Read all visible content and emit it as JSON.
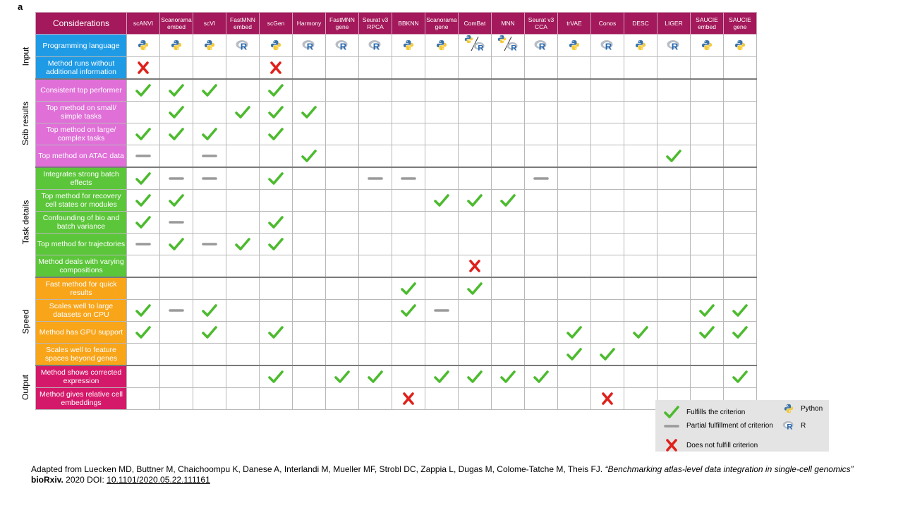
{
  "panel_label": "a",
  "corner_label": "Considerations",
  "methods": [
    [
      "scANVI"
    ],
    [
      "Scanorama",
      "embed"
    ],
    [
      "scVI"
    ],
    [
      "FastMNN",
      "embed"
    ],
    [
      "scGen"
    ],
    [
      "Harmony"
    ],
    [
      "FastMNN",
      "gene"
    ],
    [
      "Seurat v3",
      "RPCA"
    ],
    [
      "BBKNN"
    ],
    [
      "Scanorama",
      "gene"
    ],
    [
      "ComBat"
    ],
    [
      "MNN"
    ],
    [
      "Seurat v3",
      "CCA"
    ],
    [
      "trVAE"
    ],
    [
      "Conos"
    ],
    [
      "DESC"
    ],
    [
      "LIGER"
    ],
    [
      "SAUCIE",
      "embed"
    ],
    [
      "SAUCIE",
      "gene"
    ]
  ],
  "groups": [
    {
      "name": "Input",
      "color": "#1f9be6",
      "rows": [
        {
          "label": "Programming language",
          "cells": [
            "py",
            "py",
            "py",
            "R",
            "py",
            "R",
            "R",
            "R",
            "py",
            "py",
            "pyR",
            "pyR",
            "R",
            "py",
            "R",
            "py",
            "R",
            "py",
            "py"
          ]
        },
        {
          "label": "Method runs without additional information",
          "cells": [
            "x",
            "",
            "",
            "",
            "x",
            "",
            "",
            "",
            "",
            "",
            "",
            "",
            "",
            "",
            "",
            "",
            "",
            "",
            ""
          ]
        }
      ]
    },
    {
      "name": "Scib results",
      "color": "#e070d8",
      "rows": [
        {
          "label": "Consistent top performer",
          "cells": [
            "c",
            "c",
            "c",
            "",
            "c",
            "",
            "",
            "",
            "",
            "",
            "",
            "",
            "",
            "",
            "",
            "",
            "",
            "",
            ""
          ]
        },
        {
          "label": "Top method on small/ simple tasks",
          "cells": [
            "",
            "c",
            "",
            "c",
            "c",
            "c",
            "",
            "",
            "",
            "",
            "",
            "",
            "",
            "",
            "",
            "",
            "",
            "",
            ""
          ]
        },
        {
          "label": "Top method on large/ complex tasks",
          "cells": [
            "c",
            "c",
            "c",
            "",
            "c",
            "",
            "",
            "",
            "",
            "",
            "",
            "",
            "",
            "",
            "",
            "",
            "",
            "",
            ""
          ]
        },
        {
          "label": "Top method on ATAC data",
          "cells": [
            "p",
            "",
            "p",
            "",
            "",
            "c",
            "",
            "",
            "",
            "",
            "",
            "",
            "",
            "",
            "",
            "",
            "c",
            "",
            ""
          ]
        }
      ]
    },
    {
      "name": "Task details",
      "color": "#5cc63a",
      "rows": [
        {
          "label": "Integrates strong batch effects",
          "cells": [
            "c",
            "p",
            "p",
            "",
            "c",
            "",
            "",
            "p",
            "p",
            "",
            "",
            "",
            "p",
            "",
            "",
            "",
            "",
            "",
            ""
          ]
        },
        {
          "label": "Top method for recovery cell states or modules",
          "cells": [
            "c",
            "c",
            "",
            "",
            "",
            "",
            "",
            "",
            "",
            "c",
            "c",
            "c",
            "",
            "",
            "",
            "",
            "",
            "",
            ""
          ]
        },
        {
          "label": "Confounding of bio and batch variance",
          "cells": [
            "c",
            "p",
            "",
            "",
            "c",
            "",
            "",
            "",
            "",
            "",
            "",
            "",
            "",
            "",
            "",
            "",
            "",
            "",
            ""
          ]
        },
        {
          "label": "Top method for trajectories",
          "cells": [
            "p",
            "c",
            "p",
            "c",
            "c",
            "",
            "",
            "",
            "",
            "",
            "",
            "",
            "",
            "",
            "",
            "",
            "",
            "",
            ""
          ]
        },
        {
          "label": "Method deals with varying compositions",
          "cells": [
            "",
            "",
            "",
            "",
            "",
            "",
            "",
            "",
            "",
            "",
            "x",
            "",
            "",
            "",
            "",
            "",
            "",
            "",
            ""
          ]
        }
      ]
    },
    {
      "name": "Speed",
      "color": "#f8a51a",
      "rows": [
        {
          "label": "Fast method for quick results",
          "cells": [
            "",
            "",
            "",
            "",
            "",
            "",
            "",
            "",
            "c",
            "",
            "c",
            "",
            "",
            "",
            "",
            "",
            "",
            "",
            ""
          ]
        },
        {
          "label": "Scales well to large datasets on CPU",
          "cells": [
            "c",
            "p",
            "c",
            "",
            "",
            "",
            "",
            "",
            "c",
            "p",
            "",
            "",
            "",
            "",
            "",
            "",
            "",
            "c",
            "c"
          ]
        },
        {
          "label": "Method has GPU support",
          "cells": [
            "c",
            "",
            "c",
            "",
            "c",
            "",
            "",
            "",
            "",
            "",
            "",
            "",
            "",
            "c",
            "",
            "c",
            "",
            "c",
            "c"
          ]
        },
        {
          "label": "Scales well to feature spaces beyond genes",
          "cells": [
            "",
            "",
            "",
            "",
            "",
            "",
            "",
            "",
            "",
            "",
            "",
            "",
            "",
            "c",
            "c",
            "",
            "",
            "",
            ""
          ]
        }
      ]
    },
    {
      "name": "Output",
      "color": "#d5196a",
      "rows": [
        {
          "label": "Method shows corrected expression",
          "cells": [
            "",
            "",
            "",
            "",
            "c",
            "",
            "c",
            "c",
            "",
            "c",
            "c",
            "c",
            "c",
            "",
            "",
            "",
            "",
            "",
            "c"
          ]
        },
        {
          "label": "Method gives relative cell embeddings",
          "cells": [
            "",
            "",
            "",
            "",
            "",
            "",
            "",
            "",
            "x",
            "",
            "",
            "",
            "",
            "",
            "x",
            "",
            "",
            "",
            ""
          ]
        }
      ]
    }
  ],
  "legend": {
    "fulfills": "Fulfills the criterion",
    "partial": "Partial fulfillment of criterion",
    "not": "Does not fulfill criterion",
    "python": "Python",
    "r": "R"
  },
  "colors": {
    "header": "#a3195b",
    "check": "#4cbb2e",
    "cross": "#e0201b",
    "partial": "#9a9a9a",
    "legend_bg": "#e4e4e4"
  },
  "citation": {
    "prefix": "Adapted from Luecken MD, Buttner M, Chaichoompu K, Danese A, Interlandi M, Mueller MF, Strobl DC, Zappia L, Dugas M, Colome-Tatche M, Theis FJ.",
    "title": "“Benchmarking atlas-level data integration in single-cell genomics”",
    "journal": "bioRxiv.",
    "year_doi_prefix": "2020 DOI:",
    "doi": "10.1101/2020.05.22.111161"
  }
}
